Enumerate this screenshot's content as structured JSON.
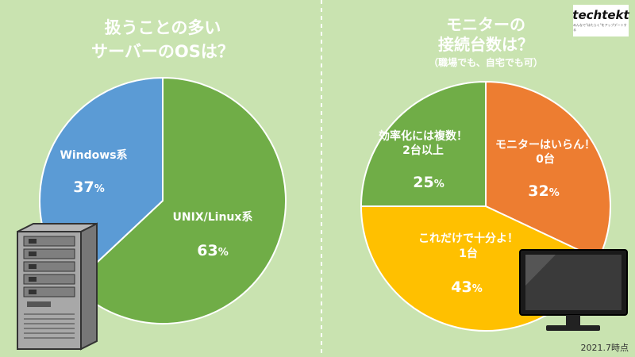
{
  "brand": {
    "logo": "techtekt",
    "tagline": "みんなで\"はたらく\"をアップデートする"
  },
  "date_note": "2021.7時点",
  "chart_data": [
    {
      "type": "pie",
      "title_lines": [
        "扱うことの多い",
        "サーバーのOSは？"
      ],
      "subtitle": "",
      "slices": [
        {
          "label_lines": [
            "UNIX/Linux系"
          ],
          "value": 63,
          "color": "#70ad47"
        },
        {
          "label_lines": [
            "Windows系"
          ],
          "value": 37,
          "color": "#5b9bd5"
        }
      ],
      "unit": "%"
    },
    {
      "type": "pie",
      "title_lines": [
        "モニターの",
        "接続台数は？"
      ],
      "subtitle": "（職場でも、自宅でも可）",
      "slices": [
        {
          "label_lines": [
            "モニターはいらん！",
            "0台"
          ],
          "value": 32,
          "color": "#ed7d31"
        },
        {
          "label_lines": [
            "これだけで十分よ！",
            "1台"
          ],
          "value": 43,
          "color": "#ffc000"
        },
        {
          "label_lines": [
            "効率化には複数！",
            "2台以上"
          ],
          "value": 25,
          "color": "#70ad47"
        }
      ],
      "unit": "%"
    }
  ]
}
